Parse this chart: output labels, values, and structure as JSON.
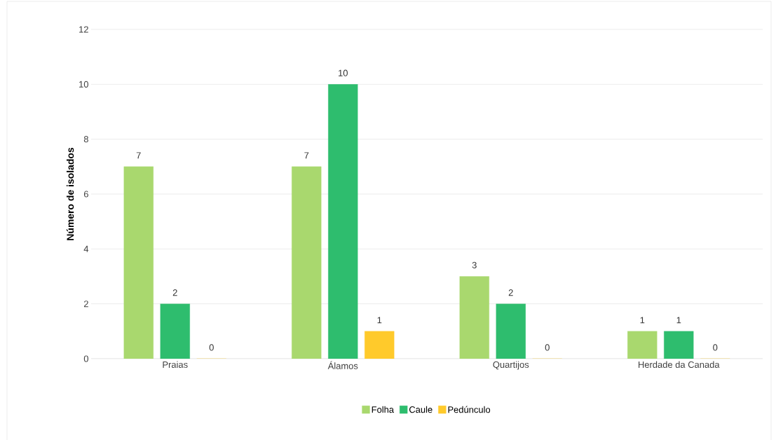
{
  "chart_data": {
    "type": "bar",
    "ylabel": "Número de isolados",
    "categories": [
      "Praias",
      "Álamos",
      "Quartijos",
      "Herdade da Canada"
    ],
    "series": [
      {
        "name": "Folha",
        "color": "#a9d86e",
        "values": [
          7,
          7,
          3,
          1
        ],
        "value_labels": [
          "7",
          "7",
          "3",
          "1"
        ]
      },
      {
        "name": "Caule",
        "color": "#2ebd6e",
        "values": [
          2,
          10,
          2,
          1
        ],
        "value_labels": [
          "2",
          "10",
          "2",
          "1"
        ]
      },
      {
        "name": "Pedúnculo",
        "color": "#ffca2b",
        "values": [
          0,
          1,
          0,
          0
        ],
        "value_labels": [
          "0",
          "1",
          "0",
          "0"
        ]
      }
    ],
    "ylim": [
      0,
      12
    ],
    "yticks": [
      0,
      2,
      4,
      6,
      8,
      10,
      12
    ],
    "grid": "y",
    "legend": "bottom"
  }
}
